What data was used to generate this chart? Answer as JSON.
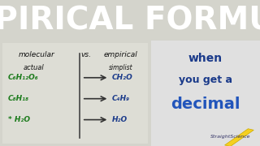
{
  "title": "EMPIRICAL FORMULA",
  "title_bg": "#000000",
  "title_color": "#ffffff",
  "title_fontsize": 28,
  "left_bg": "#d4d4cc",
  "right_bg": "#e0e0e0",
  "molecular_label": "molecular",
  "actual_label": "actual",
  "vs_label": "vs.",
  "empirical_label": "empirical",
  "simplest_label": "simplist",
  "mol_formulas": [
    "C₆H₁₂O₆",
    "C₈H₁₈",
    "* H₂O"
  ],
  "emp_formulas": [
    "CH₂O",
    "C₄H₉",
    "H₂O"
  ],
  "right_line1": "when",
  "right_line2": "you get a",
  "right_line3": "decimal",
  "right_text_color": "#1a3a8a",
  "right_text_color2": "#2255bb",
  "brand": "StraightScience",
  "mol_color": "#1a7a1a",
  "arrow_color": "#333333",
  "emp_color": "#1a3a8a",
  "label_color": "#111111",
  "pencil_color": "#f5d020"
}
